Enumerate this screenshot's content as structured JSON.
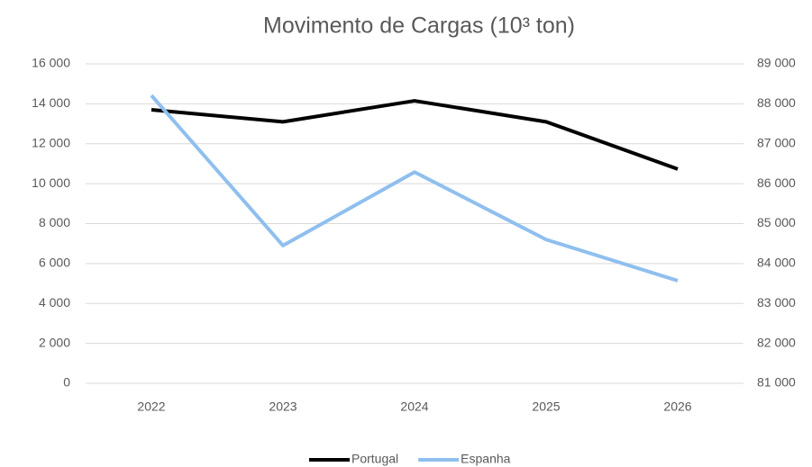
{
  "chart_data": {
    "type": "line",
    "title": "Movimento de Cargas (10³ ton)",
    "categories": [
      "2022",
      "2023",
      "2024",
      "2025",
      "2026"
    ],
    "series": [
      {
        "name": "Portugal",
        "color": "#000000",
        "values": [
          13700,
          13100,
          14150,
          13100,
          10730
        ]
      },
      {
        "name": "Espanha",
        "color": "#8fbfee",
        "axis": "y2",
        "values": [
          88210,
          84450,
          86290,
          84600,
          83570
        ]
      }
    ],
    "ylim": [
      0,
      16000
    ],
    "yticks": [
      0,
      {
        "value": 2000,
        "label": "2 000"
      },
      {
        "value": 4000,
        "label": "4 000"
      },
      {
        "value": 6000,
        "label": "6 000"
      },
      {
        "value": 8000,
        "label": "8 000"
      },
      {
        "value": 10000,
        "label": "10 000"
      },
      {
        "value": 12000,
        "label": "12 000"
      },
      {
        "value": 14000,
        "label": "14 000"
      },
      {
        "value": 16000,
        "label": "16 000"
      }
    ],
    "y2lim": [
      81000,
      89000
    ],
    "y2ticks": [
      {
        "value": 81000,
        "label": "81 000"
      },
      {
        "value": 82000,
        "label": "82 000"
      },
      {
        "value": 83000,
        "label": "83 000"
      },
      {
        "value": 84000,
        "label": "84 000"
      },
      {
        "value": 85000,
        "label": "85 000"
      },
      {
        "value": 86000,
        "label": "86 000"
      },
      {
        "value": 87000,
        "label": "87 000"
      },
      {
        "value": 88000,
        "label": "88 000"
      },
      {
        "value": 89000,
        "label": "89 000"
      }
    ],
    "grid": true,
    "legend": "bottom"
  }
}
